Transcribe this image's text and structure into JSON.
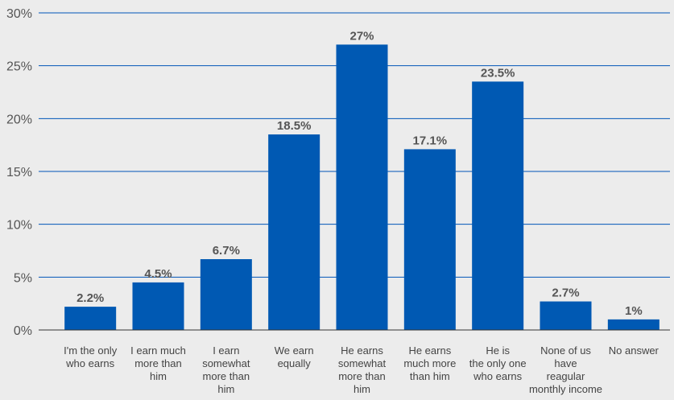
{
  "chart_data": {
    "type": "bar",
    "title": "",
    "xlabel": "",
    "ylabel": "",
    "ylim": [
      0,
      30
    ],
    "yticks": [
      0,
      5,
      10,
      15,
      20,
      25,
      30
    ],
    "ytick_labels": [
      "0%",
      "5%",
      "10%",
      "15%",
      "20%",
      "25%",
      "30%"
    ],
    "grid": true,
    "bar_color": "#0059b3",
    "grid_color": "#0055b8",
    "categories": [
      [
        "I'm the only",
        "who earns"
      ],
      [
        "I earn much",
        "more than",
        "him"
      ],
      [
        "I earn",
        "somewhat",
        "more than",
        "him"
      ],
      [
        "We earn",
        "equally"
      ],
      [
        "He earns",
        "somewhat",
        "more than",
        "him"
      ],
      [
        "He earns",
        "much more",
        "than him"
      ],
      [
        "He is",
        "the only one",
        "who earns"
      ],
      [
        "None of us",
        "have",
        "reagular",
        "monthly income"
      ],
      [
        "No answer"
      ]
    ],
    "values": [
      2.2,
      4.5,
      6.7,
      18.5,
      27,
      17.1,
      23.5,
      2.7,
      1
    ],
    "data_labels": [
      "2.2%",
      "4.5%",
      "6.7%",
      "18.5%",
      "27%",
      "17.1%",
      "23.5%",
      "2.7%",
      "1%"
    ]
  }
}
